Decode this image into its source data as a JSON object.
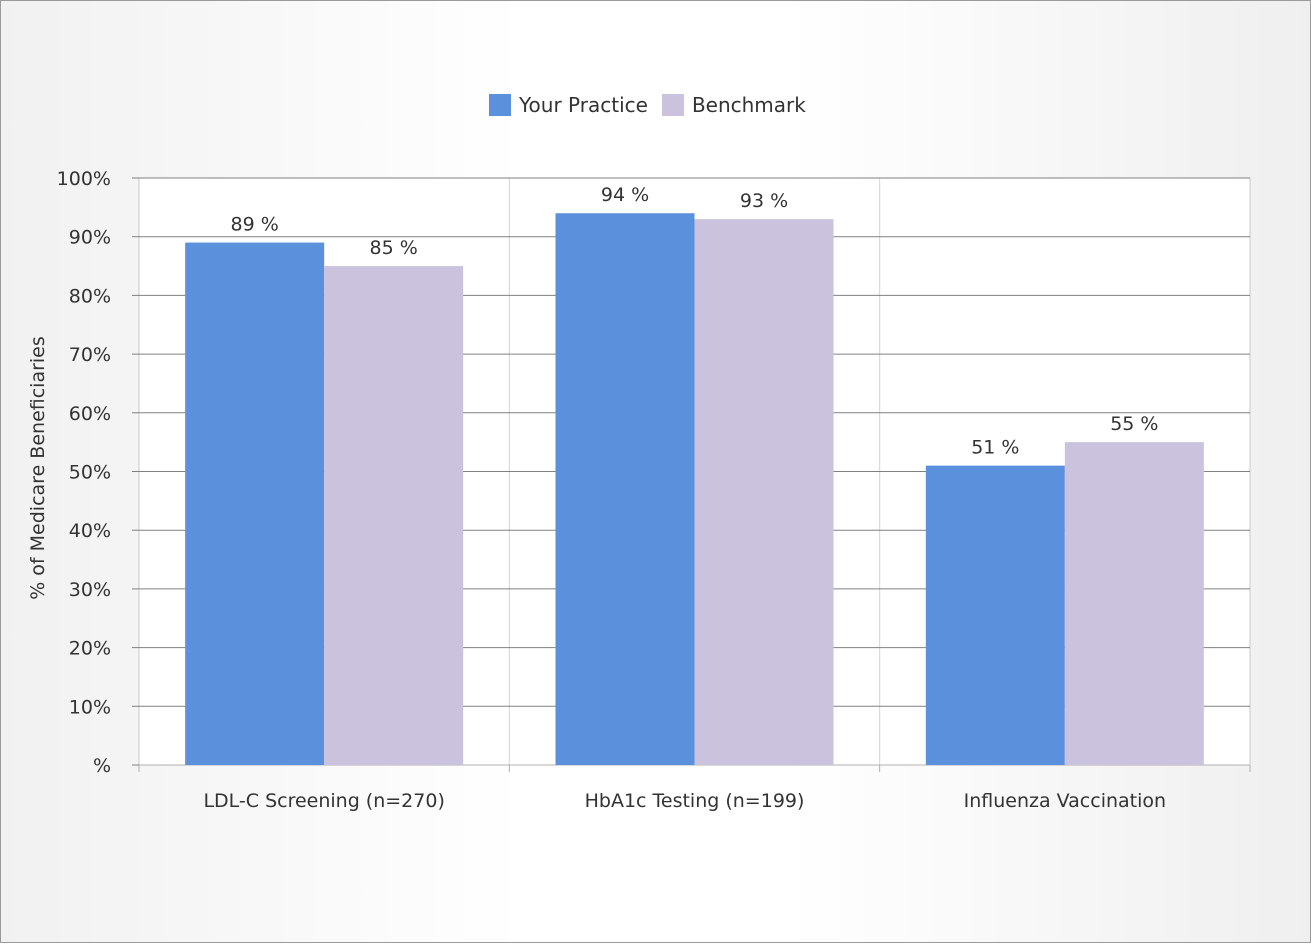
{
  "chart_data": {
    "type": "bar",
    "categories": [
      "LDL-C Screening (n=270)",
      "HbA1c Testing (n=199)",
      "Influenza Vaccination"
    ],
    "series": [
      {
        "name": "Your Practice",
        "values": [
          89,
          94,
          51
        ],
        "labels": [
          "89 %",
          "94 %",
          "51 %"
        ],
        "color": "#5b91dc"
      },
      {
        "name": "Benchmark",
        "values": [
          85,
          93,
          55
        ],
        "labels": [
          "85 %",
          "93 %",
          "55 %"
        ],
        "color": "#cbc2de"
      }
    ],
    "ylabel": "% of Medicare Beneficiaries",
    "ylim": [
      0,
      100
    ],
    "yticks": [
      0,
      10,
      20,
      30,
      40,
      50,
      60,
      70,
      80,
      90,
      100
    ],
    "ytick_labels": [
      "%",
      "10%",
      "20%",
      "30%",
      "40%",
      "50%",
      "60%",
      "70%",
      "80%",
      "90%",
      "100%"
    ],
    "legend_position": "top-center",
    "grid": true
  }
}
